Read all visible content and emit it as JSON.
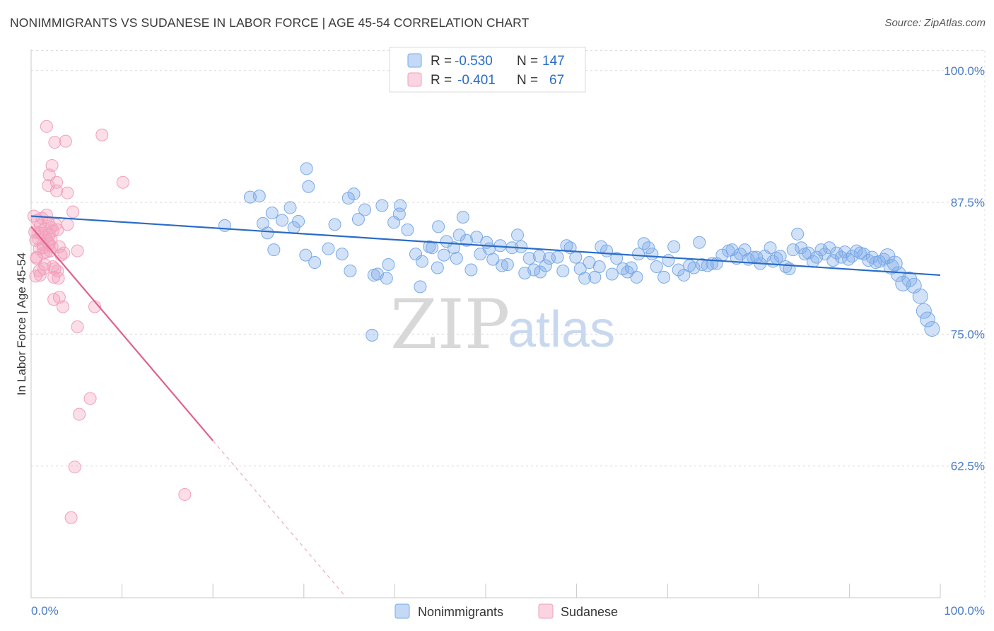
{
  "title": "NONIMMIGRANTS VS SUDANESE IN LABOR FORCE | AGE 45-54 CORRELATION CHART",
  "source": "Source: ZipAtlas.com",
  "watermark": {
    "zip": "ZIP",
    "atlas": "atlas"
  },
  "colors": {
    "blue": "#7aaae8",
    "blue_line": "#2a6cc8",
    "pink": "#f4a0bc",
    "pink_line": "#e0608e",
    "axis_text": "#4a7cc7",
    "grid": "#dcdcdc"
  },
  "legend": {
    "rows": [
      {
        "r_label": "R =",
        "r_value": "-0.530",
        "n_label": "N =",
        "n_value": "147",
        "color": "blue"
      },
      {
        "r_label": "R =",
        "r_value": "-0.401",
        "n_label": "N =",
        "n_value": "67",
        "color": "pink"
      }
    ]
  },
  "bottom_legend": [
    {
      "label": "Nonimmigrants",
      "color": "blue"
    },
    {
      "label": "Sudanese",
      "color": "pink"
    }
  ],
  "chart_data": {
    "type": "scatter",
    "title": "NONIMMIGRANTS VS SUDANESE IN LABOR FORCE | AGE 45-54 CORRELATION CHART",
    "xlabel": "",
    "ylabel": "In Labor Force | Age 45-54",
    "xlim": [
      0,
      100
    ],
    "ylim": [
      50,
      102
    ],
    "x_tick_labels": {
      "left": "0.0%",
      "right": "100.0%"
    },
    "y_ticks": [
      {
        "value": 100,
        "label": "100.0%"
      },
      {
        "value": 87.5,
        "label": "87.5%"
      },
      {
        "value": 75,
        "label": "75.0%"
      },
      {
        "value": 62.5,
        "label": "62.5%"
      }
    ],
    "grid": true,
    "legend_position": "top-center",
    "series": [
      {
        "name": "Nonimmigrants",
        "color": "blue",
        "trend": {
          "x": [
            0,
            100
          ],
          "y": [
            86.2,
            80.6
          ],
          "dashed_extension": false
        },
        "points": [
          [
            21.3,
            85.3
          ],
          [
            24.1,
            88.0
          ],
          [
            25.1,
            88.1
          ],
          [
            25.5,
            85.5
          ],
          [
            26.0,
            84.6
          ],
          [
            26.5,
            86.5
          ],
          [
            26.7,
            83.0
          ],
          [
            27.6,
            85.8
          ],
          [
            28.5,
            87.0
          ],
          [
            28.9,
            85.1
          ],
          [
            29.4,
            85.7
          ],
          [
            30.2,
            82.5
          ],
          [
            30.3,
            90.7
          ],
          [
            30.5,
            89.0
          ],
          [
            31.2,
            81.8
          ],
          [
            32.7,
            83.1
          ],
          [
            33.4,
            85.4
          ],
          [
            34.2,
            82.6
          ],
          [
            34.9,
            87.9
          ],
          [
            35.1,
            81.0
          ],
          [
            35.5,
            88.3
          ],
          [
            36.0,
            85.9
          ],
          [
            36.7,
            86.8
          ],
          [
            37.5,
            74.9
          ],
          [
            37.7,
            80.6
          ],
          [
            38.1,
            80.7
          ],
          [
            38.6,
            87.2
          ],
          [
            39.1,
            80.3
          ],
          [
            39.3,
            81.6
          ],
          [
            39.9,
            85.6
          ],
          [
            40.6,
            87.2
          ],
          [
            40.5,
            86.4
          ],
          [
            41.4,
            84.9
          ],
          [
            42.3,
            82.6
          ],
          [
            42.8,
            79.5
          ],
          [
            43.0,
            81.9
          ],
          [
            43.8,
            83.3
          ],
          [
            44.1,
            83.2
          ],
          [
            44.7,
            81.3
          ],
          [
            44.8,
            85.2
          ],
          [
            45.4,
            82.5
          ],
          [
            45.7,
            83.8
          ],
          [
            46.5,
            83.2
          ],
          [
            46.8,
            82.2
          ],
          [
            47.1,
            84.4
          ],
          [
            47.5,
            86.1
          ],
          [
            47.9,
            83.9
          ],
          [
            48.4,
            81.1
          ],
          [
            49.0,
            84.2
          ],
          [
            49.4,
            82.6
          ],
          [
            50.1,
            83.7
          ],
          [
            50.4,
            83.1
          ],
          [
            50.8,
            82.1
          ],
          [
            51.6,
            83.4
          ],
          [
            51.8,
            81.5
          ],
          [
            52.4,
            81.6
          ],
          [
            52.9,
            83.2
          ],
          [
            53.5,
            84.4
          ],
          [
            53.9,
            83.3
          ],
          [
            54.3,
            80.8
          ],
          [
            54.8,
            82.2
          ],
          [
            55.3,
            81.1
          ],
          [
            55.9,
            82.4
          ],
          [
            56.0,
            80.9
          ],
          [
            56.6,
            81.5
          ],
          [
            57.0,
            82.2
          ],
          [
            57.9,
            82.3
          ],
          [
            58.5,
            81.0
          ],
          [
            58.9,
            83.4
          ],
          [
            59.3,
            83.2
          ],
          [
            59.9,
            82.3
          ],
          [
            60.4,
            81.2
          ],
          [
            60.9,
            80.3
          ],
          [
            61.4,
            81.8
          ],
          [
            62.0,
            80.4
          ],
          [
            62.5,
            81.4
          ],
          [
            62.7,
            83.3
          ],
          [
            63.3,
            82.9
          ],
          [
            63.9,
            80.7
          ],
          [
            64.4,
            82.2
          ],
          [
            65.1,
            81.2
          ],
          [
            65.6,
            80.9
          ],
          [
            66.0,
            81.3
          ],
          [
            66.6,
            80.4
          ],
          [
            66.8,
            82.6
          ],
          [
            67.4,
            83.6
          ],
          [
            67.9,
            83.2
          ],
          [
            68.3,
            82.6
          ],
          [
            68.8,
            81.4
          ],
          [
            69.6,
            80.4
          ],
          [
            70.1,
            82.0
          ],
          [
            70.7,
            83.3
          ],
          [
            71.2,
            81.1
          ],
          [
            71.8,
            80.6
          ],
          [
            72.4,
            81.5
          ],
          [
            72.9,
            81.3
          ],
          [
            73.5,
            83.7
          ],
          [
            73.8,
            81.6
          ],
          [
            74.4,
            81.5
          ],
          [
            74.9,
            81.7
          ],
          [
            75.4,
            81.7
          ],
          [
            76.0,
            82.5
          ],
          [
            76.7,
            82.9
          ],
          [
            77.1,
            83.0
          ],
          [
            77.6,
            82.2
          ],
          [
            78.0,
            82.6
          ],
          [
            78.5,
            83.0
          ],
          [
            78.9,
            82.1
          ],
          [
            79.4,
            82.3
          ],
          [
            79.8,
            82.3
          ],
          [
            80.2,
            81.7
          ],
          [
            80.7,
            82.4
          ],
          [
            81.3,
            83.2
          ],
          [
            81.6,
            81.9
          ],
          [
            82.0,
            82.2
          ],
          [
            82.4,
            82.4
          ],
          [
            83.0,
            81.4
          ],
          [
            83.4,
            81.2
          ],
          [
            83.8,
            83.0
          ],
          [
            84.3,
            84.5
          ],
          [
            84.7,
            83.2
          ],
          [
            85.1,
            82.6
          ],
          [
            85.5,
            82.7
          ],
          [
            86.0,
            81.9
          ],
          [
            86.4,
            82.3
          ],
          [
            86.9,
            83.0
          ],
          [
            87.3,
            82.6
          ],
          [
            87.8,
            83.2
          ],
          [
            88.2,
            82.0
          ],
          [
            88.6,
            82.7
          ],
          [
            89.1,
            82.3
          ],
          [
            89.5,
            82.8
          ],
          [
            89.9,
            82.1
          ],
          [
            90.3,
            82.4
          ],
          [
            90.8,
            82.9
          ],
          [
            91.2,
            82.7
          ],
          [
            91.6,
            82.6
          ],
          [
            92.1,
            82.0
          ],
          [
            92.5,
            82.3
          ],
          [
            92.9,
            81.8
          ],
          [
            93.3,
            81.9
          ],
          [
            93.8,
            82.1
          ],
          [
            94.2,
            82.4
          ],
          [
            94.6,
            81.4
          ],
          [
            95.0,
            81.7
          ],
          [
            95.4,
            80.7
          ],
          [
            95.9,
            79.8
          ],
          [
            96.6,
            80.2
          ],
          [
            97.1,
            79.6
          ],
          [
            97.8,
            78.6
          ],
          [
            98.2,
            77.2
          ],
          [
            98.6,
            76.4
          ],
          [
            99.1,
            75.5
          ]
        ]
      },
      {
        "name": "Sudanese",
        "color": "pink",
        "trend": {
          "x": [
            0,
            20
          ],
          "y": [
            85.2,
            64.9
          ],
          "dashed_extension": {
            "x": [
              20,
              34.5
            ],
            "y": [
              64.9,
              50.2
            ]
          }
        },
        "points": [
          [
            0.3,
            86.2
          ],
          [
            0.4,
            84.7
          ],
          [
            0.5,
            83.9
          ],
          [
            0.6,
            82.3
          ],
          [
            0.7,
            85.8
          ],
          [
            0.8,
            84.0
          ],
          [
            0.9,
            83.1
          ],
          [
            1.0,
            85.3
          ],
          [
            1.1,
            84.6
          ],
          [
            1.2,
            86.0
          ],
          [
            1.3,
            83.5
          ],
          [
            1.4,
            82.7
          ],
          [
            1.5,
            85.0
          ],
          [
            1.6,
            84.2
          ],
          [
            1.7,
            86.3
          ],
          [
            1.8,
            83.8
          ],
          [
            1.9,
            85.6
          ],
          [
            2.0,
            84.4
          ],
          [
            2.1,
            82.9
          ],
          [
            2.2,
            85.1
          ],
          [
            2.3,
            83.3
          ],
          [
            2.4,
            84.8
          ],
          [
            2.5,
            80.4
          ],
          [
            2.6,
            81.2
          ],
          [
            0.5,
            80.5
          ],
          [
            0.6,
            82.2
          ],
          [
            0.9,
            81.0
          ],
          [
            1.0,
            80.6
          ],
          [
            1.3,
            83.2
          ],
          [
            1.5,
            81.6
          ],
          [
            1.7,
            82.8
          ],
          [
            2.0,
            83.6
          ],
          [
            2.2,
            84.0
          ],
          [
            2.4,
            81.4
          ],
          [
            2.7,
            85.4
          ],
          [
            2.9,
            84.9
          ],
          [
            3.1,
            83.3
          ],
          [
            3.3,
            82.5
          ],
          [
            3.6,
            82.7
          ],
          [
            4.0,
            85.4
          ],
          [
            1.7,
            94.7
          ],
          [
            2.3,
            91.0
          ],
          [
            2.6,
            93.2
          ],
          [
            2.8,
            89.4
          ],
          [
            1.9,
            89.1
          ],
          [
            2.0,
            90.1
          ],
          [
            3.8,
            93.3
          ],
          [
            7.8,
            93.9
          ],
          [
            10.1,
            89.4
          ],
          [
            4.0,
            88.4
          ],
          [
            2.8,
            88.6
          ],
          [
            4.6,
            86.6
          ],
          [
            5.1,
            82.9
          ],
          [
            3.0,
            80.3
          ],
          [
            2.5,
            78.3
          ],
          [
            3.1,
            78.5
          ],
          [
            3.5,
            77.6
          ],
          [
            7.0,
            77.6
          ],
          [
            5.1,
            75.7
          ],
          [
            6.5,
            68.9
          ],
          [
            5.3,
            67.4
          ],
          [
            4.8,
            62.4
          ],
          [
            16.9,
            59.8
          ],
          [
            4.4,
            57.6
          ],
          [
            1.4,
            81.2
          ],
          [
            2.9,
            81.0
          ],
          [
            0.8,
            84.6
          ]
        ]
      }
    ]
  }
}
